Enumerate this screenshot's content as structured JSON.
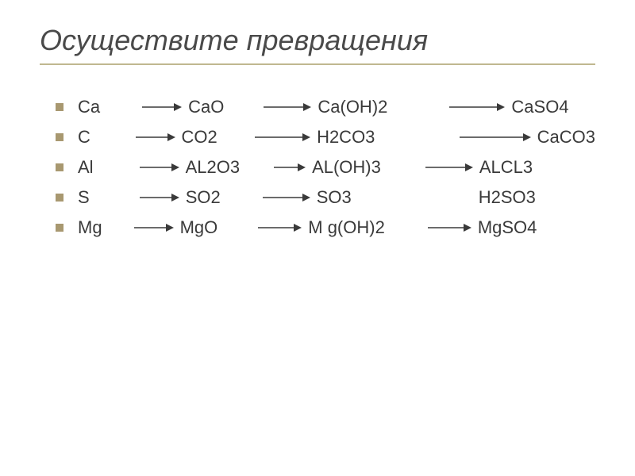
{
  "title": "Осуществите превращения",
  "title_fontsize": 36,
  "title_color": "#4a4a4a",
  "underline_color": "#c0b890",
  "bullet_color": "#a89870",
  "text_color": "#3a3a3a",
  "body_fontsize": 22,
  "arrow_color": "#3a3a3a",
  "transformations": [
    {
      "compounds": [
        "Ca",
        "CaO",
        "Ca(OH)2",
        "CaSO4"
      ],
      "spacing": [
        45,
        42,
        70,
        0
      ],
      "arrow_lengths": [
        50,
        60,
        70
      ]
    },
    {
      "compounds": [
        "C",
        "CO2",
        "H2CO3",
        "CaCO3"
      ],
      "spacing": [
        52,
        42,
        105,
        0
      ],
      "arrow_lengths": [
        50,
        70,
        90
      ]
    },
    {
      "compounds": [
        "Al",
        "AL2O3",
        "AL(OH)3",
        "ALCL3"
      ],
      "spacing": [
        50,
        35,
        48,
        0
      ],
      "arrow_lengths": [
        50,
        40,
        60
      ]
    },
    {
      "compounds": [
        "S",
        "SO2",
        "SO3",
        "H2SO3"
      ],
      "spacing": [
        55,
        45,
        160,
        0
      ],
      "arrow_lengths": [
        50,
        60,
        0
      ]
    },
    {
      "compounds": [
        "Mg",
        "MgO",
        "M g(OH)2",
        "MgSO4"
      ],
      "spacing": [
        32,
        43,
        46,
        0
      ],
      "arrow_lengths": [
        50,
        55,
        55
      ]
    }
  ]
}
